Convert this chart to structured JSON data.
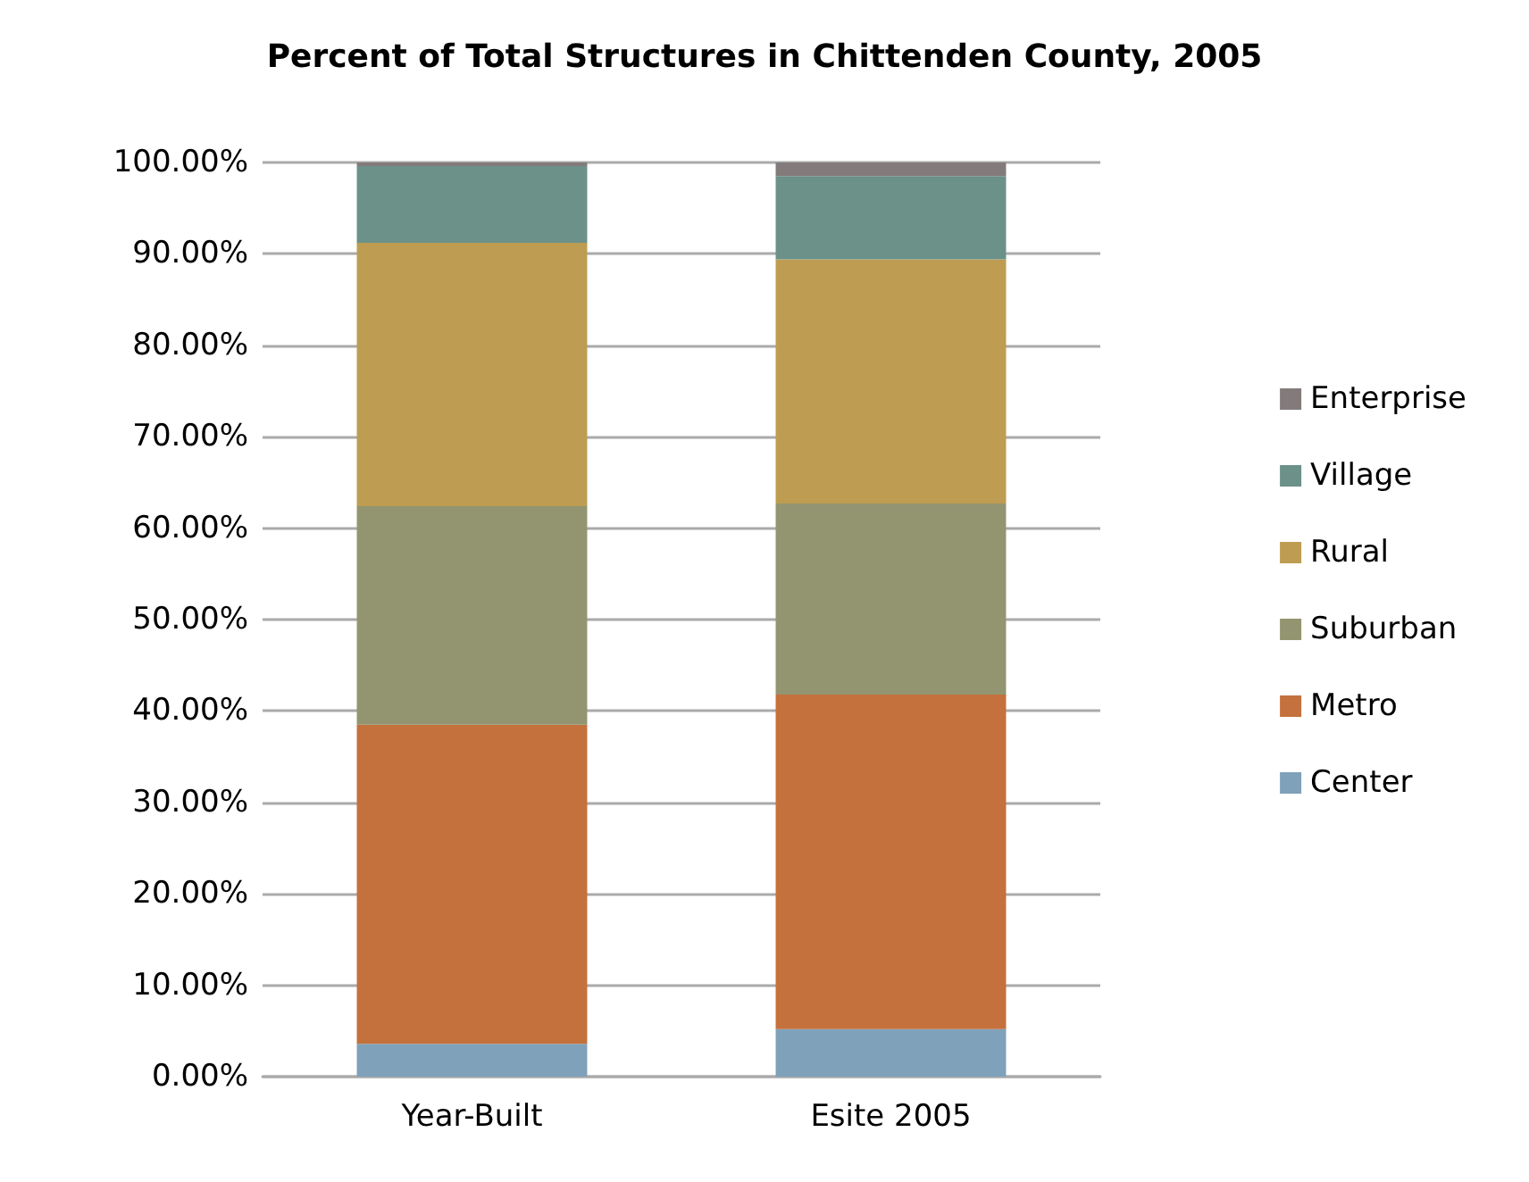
{
  "chart_data": {
    "type": "bar",
    "title": "Percent of Total Structures in Chittenden County, 2005",
    "categories": [
      "Year-Built",
      "Esite 2005"
    ],
    "stacked": true,
    "series": [
      {
        "name": "Center",
        "color": "#7fa1ba",
        "values": [
          3.6,
          5.2
        ]
      },
      {
        "name": "Metro",
        "color": "#c4713d",
        "values": [
          34.9,
          36.6
        ]
      },
      {
        "name": "Suburban",
        "color": "#939570",
        "values": [
          23.9,
          20.9
        ]
      },
      {
        "name": "Rural",
        "color": "#be9c51",
        "values": [
          28.8,
          26.7
        ]
      },
      {
        "name": "Village",
        "color": "#6b9189",
        "values": [
          8.4,
          9.1
        ]
      },
      {
        "name": "Enterprise",
        "color": "#837b7b",
        "values": [
          0.4,
          1.5
        ]
      }
    ],
    "ylim": [
      0,
      100
    ],
    "yticks": [
      {
        "value": 0,
        "label": "0.00%"
      },
      {
        "value": 10,
        "label": "10.00%"
      },
      {
        "value": 20,
        "label": "20.00%"
      },
      {
        "value": 30,
        "label": "30.00%"
      },
      {
        "value": 40,
        "label": "40.00%"
      },
      {
        "value": 50,
        "label": "50.00%"
      },
      {
        "value": 60,
        "label": "60.00%"
      },
      {
        "value": 70,
        "label": "70.00%"
      },
      {
        "value": 80,
        "label": "80.00%"
      },
      {
        "value": 90,
        "label": "90.00%"
      },
      {
        "value": 100,
        "label": "100.00%"
      }
    ],
    "grid": "y",
    "legend": "right"
  }
}
